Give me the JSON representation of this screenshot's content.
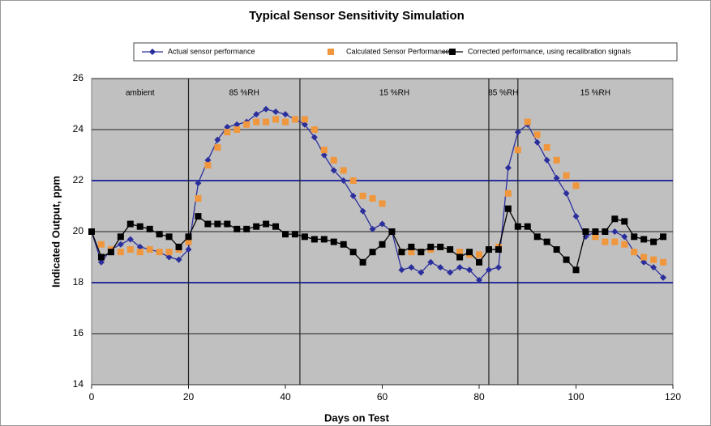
{
  "chart_data": {
    "type": "line",
    "title": "Typical Sensor Sensitivity Simulation",
    "xlabel": "Days on Test",
    "ylabel": "Indicated Output, ppm",
    "x": [
      0,
      2,
      4,
      6,
      8,
      10,
      12,
      14,
      16,
      18,
      20,
      22,
      24,
      26,
      28,
      30,
      32,
      34,
      36,
      38,
      40,
      42,
      44,
      46,
      48,
      50,
      52,
      54,
      56,
      58,
      60,
      62,
      64,
      66,
      68,
      70,
      72,
      74,
      76,
      78,
      80,
      82,
      84,
      86,
      88,
      90,
      92,
      94,
      96,
      98,
      100,
      102,
      104,
      106,
      108,
      110,
      112,
      114,
      116,
      118
    ],
    "series": [
      {
        "name": "Actual sensor performance",
        "color": "#2b2f9c",
        "marker": "diamond",
        "line": true,
        "values": [
          20,
          18.8,
          19.3,
          19.5,
          19.7,
          19.4,
          19.3,
          19.2,
          19.0,
          18.9,
          19.3,
          21.9,
          22.8,
          23.6,
          24.1,
          24.2,
          24.3,
          24.6,
          24.8,
          24.7,
          24.6,
          24.4,
          24.2,
          23.7,
          23.0,
          22.4,
          22.0,
          21.4,
          20.8,
          20.1,
          20.3,
          20.0,
          18.5,
          18.6,
          18.4,
          18.8,
          18.6,
          18.4,
          18.6,
          18.5,
          18.1,
          18.5,
          18.6,
          22.5,
          23.9,
          24.2,
          23.5,
          22.8,
          22.1,
          21.5,
          20.6,
          19.8,
          20.0,
          20.0,
          20.0,
          19.8,
          19.2,
          18.8,
          18.6,
          18.2
        ]
      },
      {
        "name": "Calculated Sensor Performance",
        "color": "#f0963c",
        "marker": "square",
        "line": false,
        "values": [
          20,
          19.5,
          19.3,
          19.2,
          19.3,
          19.2,
          19.3,
          19.2,
          19.2,
          19.3,
          19.6,
          21.3,
          22.6,
          23.3,
          23.9,
          24.0,
          24.2,
          24.3,
          24.3,
          24.4,
          24.3,
          24.4,
          24.4,
          24.0,
          23.2,
          22.8,
          22.4,
          22.0,
          21.4,
          21.3,
          21.1,
          20.0,
          19.2,
          19.2,
          19.2,
          19.3,
          19.4,
          19.3,
          19.2,
          19.1,
          19.1,
          19.3,
          19.4,
          21.5,
          23.2,
          24.3,
          23.8,
          23.3,
          22.8,
          22.2,
          21.8,
          20.0,
          19.8,
          19.6,
          19.6,
          19.5,
          19.2,
          19.0,
          18.9,
          18.8
        ]
      },
      {
        "name": "Corrected performance, using recalibration signals",
        "color": "#000000",
        "marker": "square",
        "line": true,
        "values": [
          20,
          19.0,
          19.2,
          19.8,
          20.3,
          20.2,
          20.1,
          19.9,
          19.8,
          19.4,
          19.8,
          20.6,
          20.3,
          20.3,
          20.3,
          20.1,
          20.1,
          20.2,
          20.3,
          20.2,
          19.9,
          19.9,
          19.8,
          19.7,
          19.7,
          19.6,
          19.5,
          19.2,
          18.8,
          19.2,
          19.5,
          20.0,
          19.2,
          19.4,
          19.2,
          19.4,
          19.4,
          19.3,
          19.0,
          19.2,
          18.8,
          19.3,
          19.3,
          20.9,
          20.2,
          20.2,
          19.8,
          19.6,
          19.3,
          18.9,
          18.5,
          20.0,
          20.0,
          20.0,
          20.5,
          20.4,
          19.8,
          19.7,
          19.6,
          19.8
        ]
      }
    ],
    "xlim": [
      0,
      120
    ],
    "xticks": [
      0,
      20,
      40,
      60,
      80,
      100,
      120
    ],
    "ylim": [
      14,
      26
    ],
    "yticks": [
      14,
      16,
      18,
      20,
      22,
      24,
      26
    ],
    "grid": true,
    "limit_lines": [
      18,
      22
    ],
    "limit_color": "#2b2f9c",
    "phase_boundaries": [
      20,
      43,
      82,
      88
    ],
    "phases": [
      "ambient",
      "85 %RH",
      "15 %RH",
      "85 %RH",
      "15 %RH"
    ],
    "legend": "top"
  }
}
